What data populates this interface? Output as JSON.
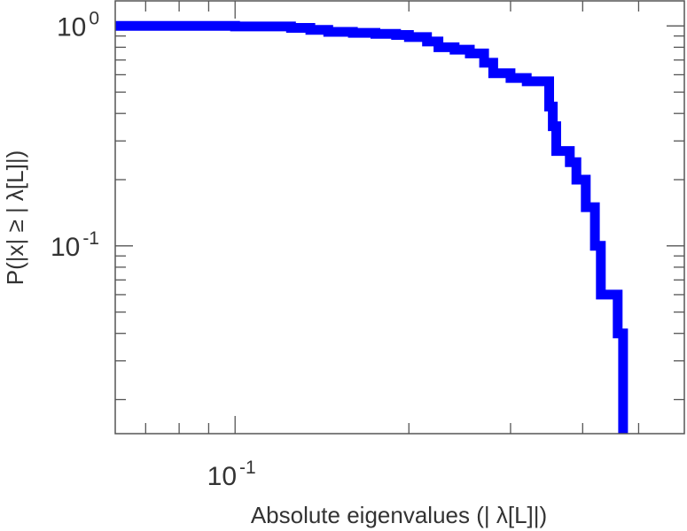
{
  "chart_data": {
    "type": "line",
    "step": true,
    "title": "",
    "xlabel": "Absolute eigenvalues (|     λ[L]|)",
    "ylabel": "P(|x|  ≥ | λ[L]|)",
    "xscale": "log",
    "yscale": "log",
    "xlim": [
      0.062,
      0.6
    ],
    "ylim": [
      0.014,
      1.3
    ],
    "grid": false,
    "x_ticks": [
      {
        "value": 0.1,
        "base": "10",
        "exp": "-1"
      }
    ],
    "y_ticks": [
      {
        "value": 1,
        "base": "10",
        "exp": "0"
      },
      {
        "value": 0.1,
        "base": "10",
        "exp": "-1"
      }
    ],
    "series": [
      {
        "color": "#0000ff",
        "x": [
          0.062,
          0.1,
          0.125,
          0.135,
          0.145,
          0.16,
          0.175,
          0.19,
          0.2,
          0.215,
          0.225,
          0.24,
          0.255,
          0.27,
          0.28,
          0.3,
          0.32,
          0.35,
          0.355,
          0.36,
          0.38,
          0.39,
          0.405,
          0.42,
          0.43,
          0.46,
          0.47,
          0.47
        ],
        "y": [
          1.0,
          0.995,
          0.98,
          0.96,
          0.94,
          0.93,
          0.92,
          0.91,
          0.89,
          0.85,
          0.8,
          0.78,
          0.75,
          0.68,
          0.61,
          0.58,
          0.56,
          0.43,
          0.35,
          0.27,
          0.24,
          0.2,
          0.15,
          0.1,
          0.06,
          0.04,
          0.02,
          0.014
        ]
      }
    ]
  }
}
